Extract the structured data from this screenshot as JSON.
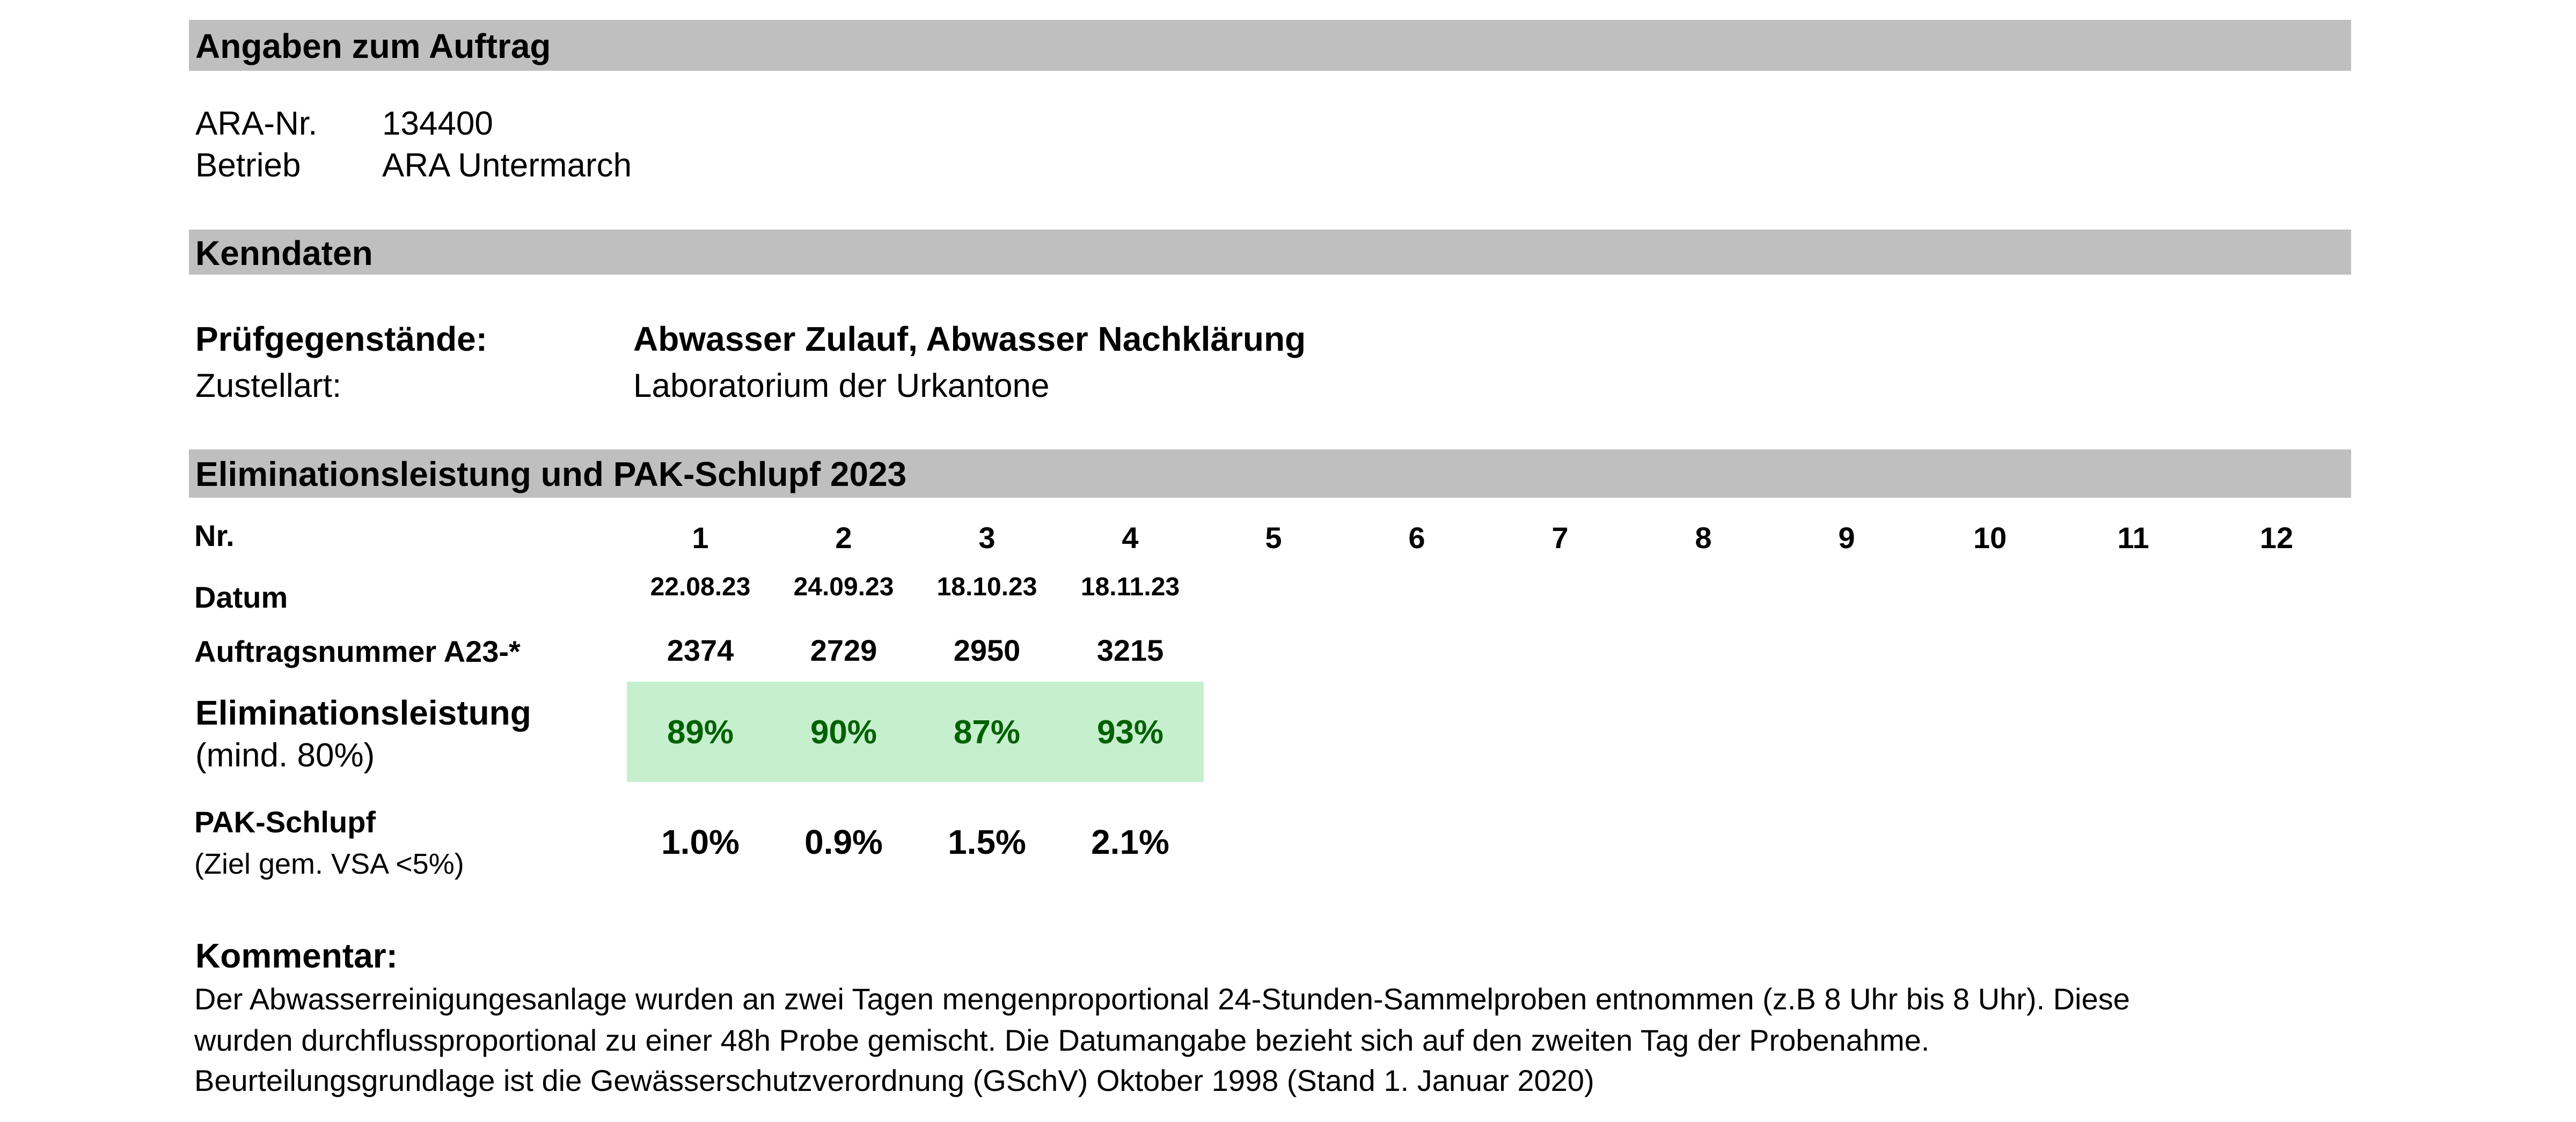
{
  "sections": {
    "auftrag_title": "Angaben zum Auftrag",
    "kenndaten_title": "Kenndaten",
    "elimination_title": "Eliminationsleistung und PAK-Schlupf 2023"
  },
  "auftrag": {
    "ara_label": "ARA-Nr.",
    "ara_value": "134400",
    "betrieb_label": "Betrieb",
    "betrieb_value": "ARA Untermarch"
  },
  "kenndaten": {
    "pruef_label": "Prüfgegenstände:",
    "pruef_value": "Abwasser Zulauf, Abwasser Nachklärung",
    "zustell_label": "Zustellart:",
    "zustell_value": "Laboratorium der Urkantone"
  },
  "table": {
    "nr_label": "Nr.",
    "numbers": [
      "1",
      "2",
      "3",
      "4",
      "5",
      "6",
      "7",
      "8",
      "9",
      "10",
      "11",
      "12"
    ],
    "datum_label": "Datum",
    "dates": [
      "22.08.23",
      "24.09.23",
      "18.10.23",
      "18.11.23"
    ],
    "auftrag_label": "Auftragsnummer A23-*",
    "auftrag_numbers": [
      "2374",
      "2729",
      "2950",
      "3215"
    ],
    "elim_label": "Eliminationsleistung",
    "elim_sub": "(mind. 80%)",
    "elim_values": [
      "89%",
      "90%",
      "87%",
      "93%"
    ],
    "pak_label": "PAK-Schlupf",
    "pak_sub": "(Ziel gem. VSA  <5%)",
    "pak_values": [
      "1.0%",
      "0.9%",
      "1.5%",
      "2.1%"
    ]
  },
  "kommentar": {
    "title": "Kommentar:",
    "lines": [
      "Der Abwasserreinigungesanlage wurden an zwei Tagen mengenproportional 24-Stunden-Sammelproben entnommen (z.B 8 Uhr bis 8 Uhr). Diese",
      "wurden durchflussproportional zu einer 48h Probe gemischt. Die Datumangabe bezieht sich auf den zweiten Tag der Probenahme.",
      "Beurteilungsgrundlage ist die Gewässerschutzverordnung (GSchV) Oktober 1998 (Stand 1. Januar 2020)"
    ]
  },
  "colors": {
    "header_bar": "#bfbfbf",
    "elim_fill": "#c6efce",
    "elim_text": "#006100"
  }
}
